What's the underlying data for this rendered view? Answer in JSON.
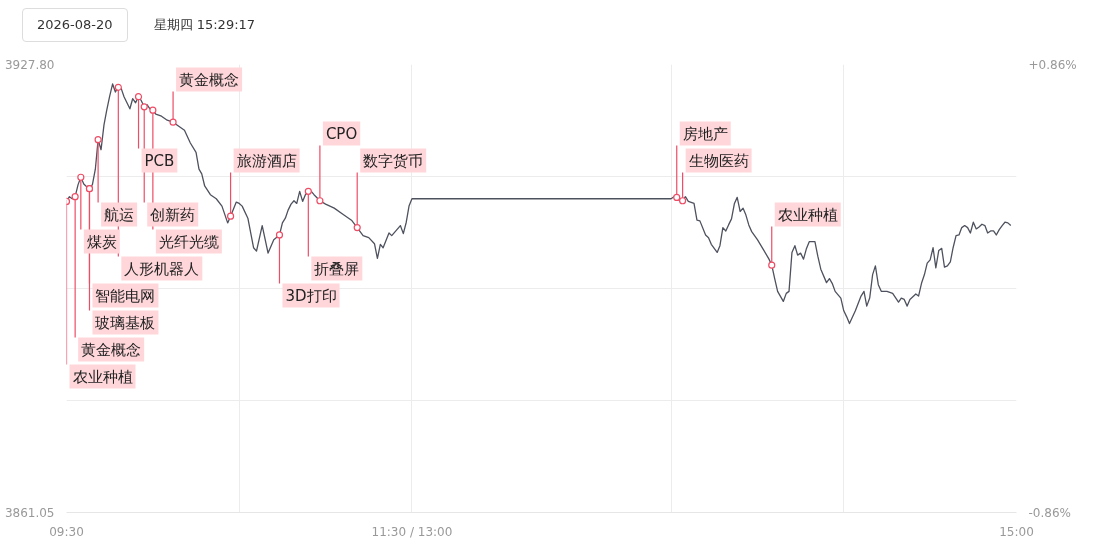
{
  "chart_data": {
    "type": "line",
    "title": "2026-08-20",
    "subtitle": "星期四 15:29:17",
    "color": "#4e525e",
    "x": [
      9.5,
      9.517,
      9.533,
      9.55,
      9.567,
      9.583,
      9.6,
      9.617,
      9.633,
      9.65,
      9.667,
      9.683,
      9.7,
      9.717,
      9.733,
      9.75,
      9.767,
      9.783,
      9.8,
      9.817,
      9.833,
      9.85,
      9.867,
      9.883,
      9.9,
      9.917,
      9.933,
      9.95,
      9.967,
      9.983,
      10.0,
      10.017,
      10.05,
      10.083,
      10.117,
      10.15,
      10.183,
      10.217,
      10.25,
      10.267,
      10.283,
      10.3,
      10.333,
      10.367,
      10.4,
      10.433,
      10.45,
      10.483,
      10.5,
      10.517,
      10.55,
      10.583,
      10.6,
      10.633,
      10.667,
      10.7,
      10.733,
      10.75,
      10.767,
      10.783,
      10.8,
      10.817,
      10.833,
      10.85,
      10.867,
      10.883,
      10.9,
      10.917,
      10.933,
      10.967,
      11.0,
      11.05,
      11.1,
      11.15,
      11.183,
      11.217,
      11.25,
      11.283,
      11.3,
      11.317,
      11.333,
      11.367,
      11.383,
      11.433,
      11.45,
      11.467,
      11.483,
      11.5,
      13.0,
      13.017,
      13.033,
      13.05,
      13.067,
      13.083,
      13.1,
      13.133,
      13.15,
      13.167,
      13.2,
      13.217,
      13.233,
      13.267,
      13.283,
      13.3,
      13.317,
      13.333,
      13.35,
      13.367,
      13.383,
      13.4,
      13.417,
      13.433,
      13.45,
      13.467,
      13.5,
      13.533,
      13.567,
      13.583,
      13.6,
      13.617,
      13.65,
      13.667,
      13.683,
      13.7,
      13.717,
      13.733,
      13.75,
      13.767,
      13.783,
      13.8,
      13.833,
      13.85,
      13.867,
      13.9,
      13.917,
      13.933,
      13.95,
      13.983,
      14.0,
      14.017,
      14.033,
      14.067,
      14.1,
      14.117,
      14.133,
      14.15,
      14.167,
      14.183,
      14.2,
      14.217,
      14.25,
      14.283,
      14.317,
      14.333,
      14.35,
      14.367,
      14.383,
      14.417,
      14.433,
      14.45,
      14.467,
      14.483,
      14.5,
      14.517,
      14.533,
      14.55,
      14.567,
      14.583,
      14.6,
      14.617,
      14.633,
      14.65,
      14.667,
      14.683,
      14.7,
      14.717,
      14.733,
      14.75,
      14.767,
      14.783,
      14.8,
      14.817,
      14.833,
      14.85,
      14.867,
      14.883,
      14.9,
      14.917,
      14.933,
      14.95,
      14.967
    ],
    "values": [
      3907.4,
      3908.1,
      3907.8,
      3908.1,
      3909.9,
      3911.0,
      3910.0,
      3909.6,
      3909.3,
      3909.9,
      3912.2,
      3916.6,
      3915.1,
      3918.8,
      3921.0,
      3923.1,
      3924.9,
      3923.7,
      3924.4,
      3924.2,
      3923.0,
      3922.1,
      3921.2,
      3922.7,
      3922.1,
      3923.0,
      3922.4,
      3921.5,
      3921.8,
      3921.2,
      3921.0,
      3920.4,
      3920.1,
      3919.5,
      3919.2,
      3918.6,
      3918.0,
      3916.1,
      3914.7,
      3912.2,
      3911.5,
      3909.7,
      3908.4,
      3907.8,
      3906.7,
      3904.2,
      3905.2,
      3907.3,
      3907.1,
      3906.7,
      3904.9,
      3900.5,
      3900.0,
      3903.8,
      3899.7,
      3901.7,
      3902.4,
      3904.2,
      3904.9,
      3906.1,
      3907.0,
      3907.5,
      3907.1,
      3908.9,
      3907.4,
      3908.4,
      3908.9,
      3908.9,
      3908.4,
      3907.5,
      3907.0,
      3906.4,
      3905.5,
      3904.6,
      3903.5,
      3902.3,
      3902.0,
      3901.1,
      3898.9,
      3901.0,
      3900.5,
      3902.7,
      3902.3,
      3903.8,
      3902.6,
      3904.3,
      3906.7,
      3907.8,
      3907.8,
      3908.1,
      3908.0,
      3907.5,
      3907.5,
      3908.1,
      3907.4,
      3907.1,
      3904.6,
      3904.5,
      3902.4,
      3902.0,
      3901.0,
      3899.8,
      3900.8,
      3903.5,
      3903.0,
      3903.9,
      3904.8,
      3907.1,
      3908.0,
      3905.9,
      3906.4,
      3905.4,
      3903.9,
      3902.9,
      3901.7,
      3900.3,
      3898.8,
      3897.9,
      3895.9,
      3894.0,
      3892.5,
      3893.7,
      3894.0,
      3899.8,
      3900.8,
      3899.4,
      3899.7,
      3898.8,
      3900.3,
      3901.4,
      3901.4,
      3899.2,
      3897.3,
      3895.3,
      3895.9,
      3895.2,
      3894.0,
      3893.0,
      3891.1,
      3890.2,
      3889.2,
      3891.1,
      3893.3,
      3894.0,
      3891.8,
      3893.0,
      3896.5,
      3897.8,
      3895.0,
      3894.0,
      3894.0,
      3893.7,
      3892.4,
      3893.0,
      3892.8,
      3891.8,
      3892.8,
      3893.6,
      3893.3,
      3895.2,
      3896.5,
      3898.2,
      3898.7,
      3900.5,
      3897.5,
      3900.1,
      3900.4,
      3897.6,
      3897.8,
      3898.4,
      3900.5,
      3902.3,
      3902.4,
      3903.5,
      3903.8,
      3903.5,
      3902.7,
      3904.3,
      3903.3,
      3903.6,
      3904.0,
      3903.8,
      3902.7,
      3903.0,
      3903.0,
      3902.4,
      3903.2,
      3903.8,
      3904.3,
      3904.2,
      3903.8
    ],
    "xlim": [
      9.5,
      15.0
    ],
    "xticks": [
      {
        "value": 9.5,
        "label": "09:30"
      },
      {
        "value": 10.5,
        "label": null
      },
      {
        "value": 11.5,
        "label": "11:30 / 13:00"
      },
      {
        "value": 13.0,
        "label": null
      },
      {
        "value": 14.0,
        "label": null
      },
      {
        "value": 15.0,
        "label": "15:00"
      }
    ],
    "ylim": [
      3861.05,
      3927.8
    ],
    "yticks": [
      {
        "value": 3927.8,
        "label": "3927.80"
      },
      {
        "value": 3911.11,
        "label": null
      },
      {
        "value": 3894.43,
        "label": null
      },
      {
        "value": 3877.74,
        "label": null
      },
      {
        "value": 3861.05,
        "label": "3861.05"
      }
    ],
    "y2lim": [
      -0.86,
      0.86
    ],
    "y2ticks": [
      {
        "value": 0.86,
        "label": "+0.86%"
      },
      {
        "value": -0.86,
        "label": "-0.86%"
      }
    ],
    "grid": true,
    "annotations": [
      {
        "text": "农业种植",
        "x": 9.5,
        "y": 3907.4
      },
      {
        "text": "黄金概念",
        "x": 9.55,
        "y": 3908.1
      },
      {
        "text": "煤炭",
        "x": 9.583,
        "y": 3911.0
      },
      {
        "text": "智能电网",
        "x": 9.633,
        "y": 3909.3
      },
      {
        "text": "玻璃基板",
        "x": 9.633,
        "y": 3909.3
      },
      {
        "text": "航运",
        "x": 9.683,
        "y": 3916.6
      },
      {
        "text": "人形机器人",
        "x": 9.8,
        "y": 3924.4
      },
      {
        "text": "PCB",
        "x": 9.917,
        "y": 3923.0
      },
      {
        "text": "创新药",
        "x": 9.95,
        "y": 3921.5
      },
      {
        "text": "光纤光缆",
        "x": 10.0,
        "y": 3921.0
      },
      {
        "text": "黄金概念",
        "x": 10.117,
        "y": 3919.2
      },
      {
        "text": "旅游酒店",
        "x": 10.45,
        "y": 3905.2
      },
      {
        "text": "3D打印",
        "x": 10.733,
        "y": 3902.4
      },
      {
        "text": "折叠屏",
        "x": 10.9,
        "y": 3908.9
      },
      {
        "text": "CPO",
        "x": 10.967,
        "y": 3907.5
      },
      {
        "text": "数字货币",
        "x": 11.183,
        "y": 3903.5
      },
      {
        "text": "房地产",
        "x": 13.033,
        "y": 3908.0
      },
      {
        "text": "生物医药",
        "x": 13.067,
        "y": 3907.5
      },
      {
        "text": "农业种植",
        "x": 13.583,
        "y": 3897.9
      }
    ]
  }
}
